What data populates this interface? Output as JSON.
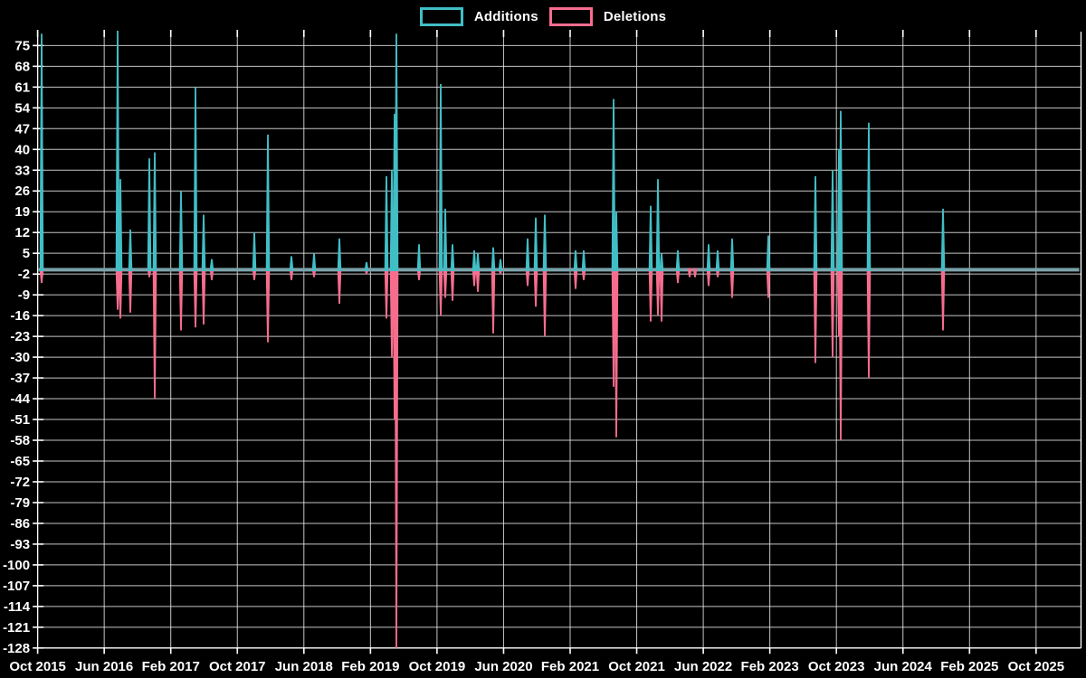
{
  "legend": {
    "additions": "Additions",
    "deletions": "Deletions"
  },
  "colors": {
    "background": "#000000",
    "additions": "#41bec6",
    "deletions": "#f76d8e",
    "grid": "#e8e8e8",
    "axis": "#ffffff",
    "zero_line": "#7aa1a8",
    "text": "#ffffff"
  },
  "chart_data": {
    "type": "line",
    "title": "",
    "xlabel": "",
    "ylabel": "",
    "grid": true,
    "legend_position": "top-center",
    "baseline": 0,
    "ylim": [
      -131,
      81
    ],
    "y_ticks": [
      75,
      68,
      61,
      54,
      47,
      40,
      33,
      26,
      19,
      12,
      5,
      -2,
      -9,
      -16,
      -23,
      -30,
      -37,
      -44,
      -51,
      -58,
      -65,
      -72,
      -79,
      -86,
      -93,
      -100,
      -107,
      -114,
      -121,
      -128
    ],
    "x_ticks": [
      "Oct 2015",
      "Jun 2016",
      "Feb 2017",
      "Oct 2017",
      "Jun 2018",
      "Feb 2019",
      "Oct 2019",
      "Jun 2020",
      "Feb 2021",
      "Oct 2021",
      "Jun 2022",
      "Feb 2023",
      "Oct 2023",
      "Jun 2024",
      "Feb 2025",
      "Oct 2025"
    ],
    "series": [
      {
        "name": "Additions",
        "color": "#41bec6",
        "points": [
          [
            46,
            79
          ],
          [
            130,
            80
          ],
          [
            133,
            30
          ],
          [
            144,
            13
          ],
          [
            165,
            37
          ],
          [
            171,
            39
          ],
          [
            200,
            26
          ],
          [
            216,
            61
          ],
          [
            225,
            18
          ],
          [
            234,
            3
          ],
          [
            281,
            12
          ],
          [
            296,
            45
          ],
          [
            322,
            4
          ],
          [
            347,
            5
          ],
          [
            375,
            10
          ],
          [
            405,
            2
          ],
          [
            427,
            31
          ],
          [
            433,
            33
          ],
          [
            436,
            52
          ],
          [
            438,
            79
          ],
          [
            463,
            8
          ],
          [
            487,
            62
          ],
          [
            492,
            20
          ],
          [
            500,
            8
          ],
          [
            524,
            6
          ],
          [
            528,
            5
          ],
          [
            545,
            7
          ],
          [
            553,
            3
          ],
          [
            583,
            10
          ],
          [
            592,
            17
          ],
          [
            602,
            18
          ],
          [
            636,
            6
          ],
          [
            645,
            6
          ],
          [
            678,
            57
          ],
          [
            681,
            19
          ],
          [
            719,
            21
          ],
          [
            727,
            30
          ],
          [
            731,
            5
          ],
          [
            749,
            6
          ],
          [
            783,
            8
          ],
          [
            793,
            6
          ],
          [
            809,
            10
          ],
          [
            849,
            11
          ],
          [
            901,
            31
          ],
          [
            920,
            33
          ],
          [
            927,
            40
          ],
          [
            929,
            53
          ],
          [
            960,
            49
          ],
          [
            1042,
            20
          ]
        ]
      },
      {
        "name": "Deletions",
        "color": "#f76d8e",
        "points": [
          [
            46,
            -5
          ],
          [
            130,
            -14
          ],
          [
            133,
            -17
          ],
          [
            144,
            -15
          ],
          [
            165,
            -3
          ],
          [
            171,
            -44
          ],
          [
            200,
            -21
          ],
          [
            216,
            -20
          ],
          [
            225,
            -19
          ],
          [
            234,
            -4
          ],
          [
            281,
            -4
          ],
          [
            296,
            -25
          ],
          [
            322,
            -4
          ],
          [
            347,
            -3
          ],
          [
            375,
            -12
          ],
          [
            405,
            -2
          ],
          [
            427,
            -17
          ],
          [
            433,
            -30
          ],
          [
            436,
            -51
          ],
          [
            438,
            -128
          ],
          [
            463,
            -4
          ],
          [
            487,
            -16
          ],
          [
            492,
            -10
          ],
          [
            500,
            -11
          ],
          [
            524,
            -6
          ],
          [
            528,
            -8
          ],
          [
            545,
            -22
          ],
          [
            553,
            -2
          ],
          [
            583,
            -6
          ],
          [
            592,
            -13
          ],
          [
            602,
            -23
          ],
          [
            636,
            -7
          ],
          [
            645,
            -4
          ],
          [
            678,
            -40
          ],
          [
            681,
            -57
          ],
          [
            719,
            -18
          ],
          [
            727,
            -16
          ],
          [
            731,
            -18
          ],
          [
            749,
            -5
          ],
          [
            762,
            -3
          ],
          [
            768,
            -3
          ],
          [
            783,
            -6
          ],
          [
            793,
            -3
          ],
          [
            809,
            -10
          ],
          [
            849,
            -10
          ],
          [
            901,
            -32
          ],
          [
            920,
            -30
          ],
          [
            927,
            -23
          ],
          [
            929,
            -58
          ],
          [
            960,
            -37
          ],
          [
            1042,
            -21
          ]
        ]
      }
    ]
  }
}
